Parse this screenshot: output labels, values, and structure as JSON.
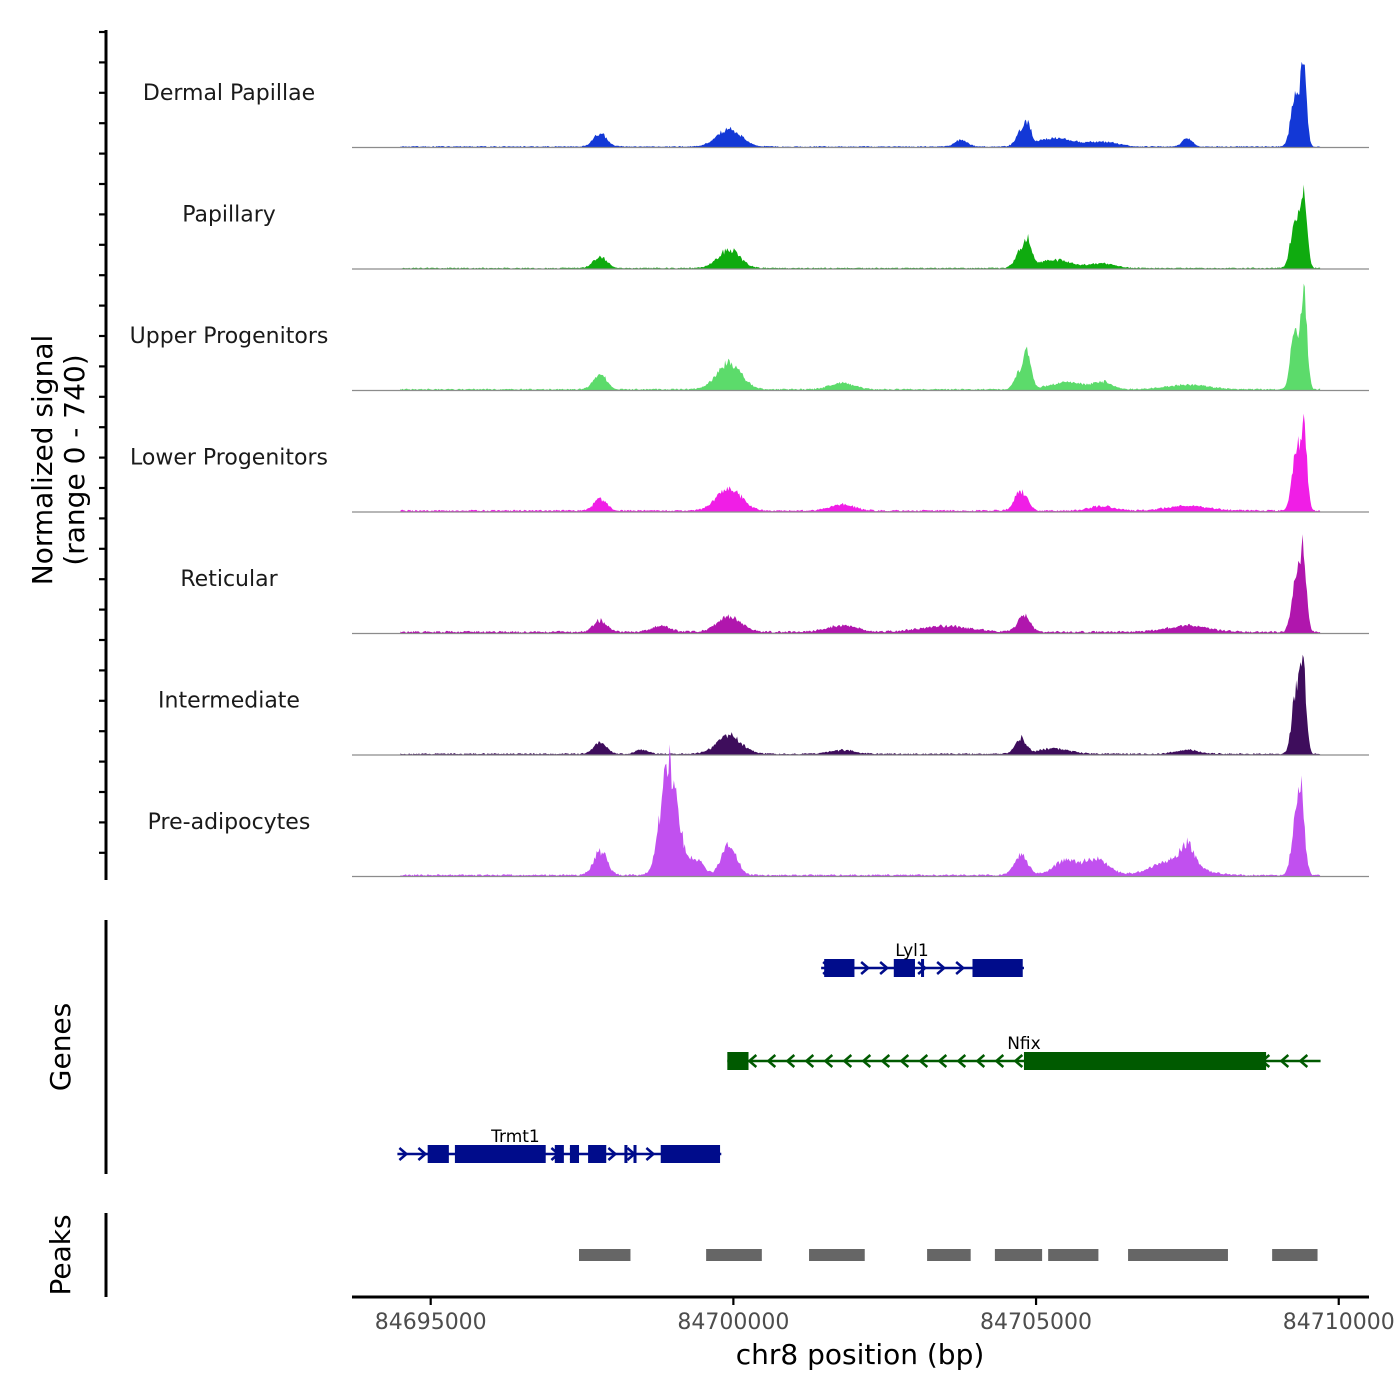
{
  "chart_data": {
    "type": "area",
    "title": "",
    "xlabel": "chr8 position (bp)",
    "ylabel": [
      "Normalized signal",
      "(range 0 - 740)"
    ],
    "ylim": [
      0,
      740
    ],
    "xlim": [
      84693700,
      84710500
    ],
    "xticks": [
      84695000,
      84700000,
      84705000,
      84710000
    ],
    "xtick_labels": [
      "84695000",
      "84700000",
      "84705000",
      "84710000"
    ],
    "signal_range": [
      84694500,
      84709700
    ],
    "tracks": [
      {
        "name": "Dermal Papillae",
        "color": "#1338d6",
        "baseline": 8,
        "peaks": [
          [
            84697800,
            85,
            110
          ],
          [
            84699930,
            110,
            200
          ],
          [
            84703760,
            45,
            100
          ],
          [
            84704750,
            90,
            80
          ],
          [
            84704870,
            115,
            50
          ],
          [
            84705300,
            55,
            300
          ],
          [
            84706100,
            30,
            250
          ],
          [
            84707500,
            55,
            80
          ],
          [
            84709280,
            330,
            70
          ],
          [
            84709420,
            470,
            50
          ]
        ]
      },
      {
        "name": "Papillary",
        "color": "#0fab0f",
        "baseline": 8,
        "peaks": [
          [
            84697800,
            75,
            110
          ],
          [
            84699930,
            120,
            180
          ],
          [
            84704750,
            110,
            90
          ],
          [
            84704870,
            130,
            60
          ],
          [
            84705300,
            55,
            280
          ],
          [
            84706100,
            30,
            200
          ],
          [
            84709280,
            340,
            70
          ],
          [
            84709430,
            510,
            50
          ]
        ]
      },
      {
        "name": "Upper Progenitors",
        "color": "#5cdb6b",
        "baseline": 10,
        "peaks": [
          [
            84697800,
            95,
            110
          ],
          [
            84699930,
            170,
            200
          ],
          [
            84701800,
            40,
            200
          ],
          [
            84704750,
            130,
            90
          ],
          [
            84704870,
            180,
            60
          ],
          [
            84705500,
            45,
            300
          ],
          [
            84706100,
            45,
            150
          ],
          [
            84707500,
            30,
            350
          ],
          [
            84709280,
            400,
            70
          ],
          [
            84709430,
            600,
            50
          ]
        ]
      },
      {
        "name": "Lower Progenitors",
        "color": "#f01ee6",
        "baseline": 12,
        "peaks": [
          [
            84697800,
            75,
            110
          ],
          [
            84699930,
            150,
            200
          ],
          [
            84701800,
            40,
            200
          ],
          [
            84704750,
            130,
            100
          ],
          [
            84706100,
            30,
            200
          ],
          [
            84707500,
            30,
            350
          ],
          [
            84709300,
            420,
            70
          ],
          [
            84709430,
            470,
            50
          ]
        ]
      },
      {
        "name": "Reticular",
        "color": "#b016ad",
        "baseline": 14,
        "peaks": [
          [
            84697800,
            75,
            110
          ],
          [
            84698800,
            40,
            150
          ],
          [
            84699930,
            100,
            200
          ],
          [
            84701800,
            40,
            250
          ],
          [
            84703500,
            40,
            400
          ],
          [
            84704800,
            110,
            100
          ],
          [
            84707500,
            40,
            350
          ],
          [
            84709300,
            380,
            70
          ],
          [
            84709420,
            440,
            50
          ]
        ]
      },
      {
        "name": "Intermediate",
        "color": "#3e0d5c",
        "baseline": 10,
        "peaks": [
          [
            84697800,
            70,
            110
          ],
          [
            84698500,
            30,
            100
          ],
          [
            84699930,
            120,
            200
          ],
          [
            84701800,
            25,
            200
          ],
          [
            84704750,
            100,
            90
          ],
          [
            84705300,
            35,
            250
          ],
          [
            84707500,
            25,
            200
          ],
          [
            84709300,
            400,
            70
          ],
          [
            84709420,
            460,
            50
          ]
        ]
      },
      {
        "name": "Pre-adipocytes",
        "color": "#c150ef",
        "baseline": 12,
        "peaks": [
          [
            84697800,
            160,
            110
          ],
          [
            84698900,
            430,
            120
          ],
          [
            84699000,
            350,
            150
          ],
          [
            84699400,
            100,
            110
          ],
          [
            84699930,
            210,
            120
          ],
          [
            84704750,
            130,
            110
          ],
          [
            84705500,
            95,
            200
          ],
          [
            84706000,
            100,
            200
          ],
          [
            84707300,
            100,
            350
          ],
          [
            84707500,
            130,
            100
          ],
          [
            84709290,
            340,
            70
          ],
          [
            84709380,
            430,
            60
          ]
        ]
      }
    ],
    "genes_track_label": "Genes",
    "genes": [
      {
        "name": "Lyl1",
        "strand": "+",
        "start": 84701450,
        "end": 84704800,
        "color": "#000c8b",
        "row": 0,
        "exons": [
          [
            84701500,
            84702000
          ],
          [
            84702650,
            84703000
          ],
          [
            84703100,
            84703150
          ],
          [
            84703950,
            84704780
          ]
        ]
      },
      {
        "name": "Nfix",
        "strand": "-",
        "start": 84699900,
        "end": 84709700,
        "color": "#005a00",
        "row": 1,
        "exons": [
          [
            84699900,
            84700250
          ],
          [
            84704800,
            84708800
          ]
        ]
      },
      {
        "name": "Trmt1",
        "strand": "+",
        "start": 84694450,
        "end": 84699800,
        "color": "#000c8b",
        "row": 2,
        "exons": [
          [
            84694950,
            84695300
          ],
          [
            84695400,
            84696900
          ],
          [
            84697050,
            84697200
          ],
          [
            84697300,
            84697450
          ],
          [
            84697600,
            84697900
          ],
          [
            84698200,
            84698250
          ],
          [
            84698350,
            84698400
          ],
          [
            84698800,
            84699780
          ]
        ]
      }
    ],
    "peaks_track_label": "Peaks",
    "peak_regions": [
      [
        84697450,
        84698300
      ],
      [
        84699550,
        84700470
      ],
      [
        84701250,
        84702170
      ],
      [
        84703200,
        84703920
      ],
      [
        84704320,
        84705100
      ],
      [
        84705200,
        84706030
      ],
      [
        84706520,
        84708170
      ],
      [
        84708900,
        84709650
      ]
    ]
  }
}
